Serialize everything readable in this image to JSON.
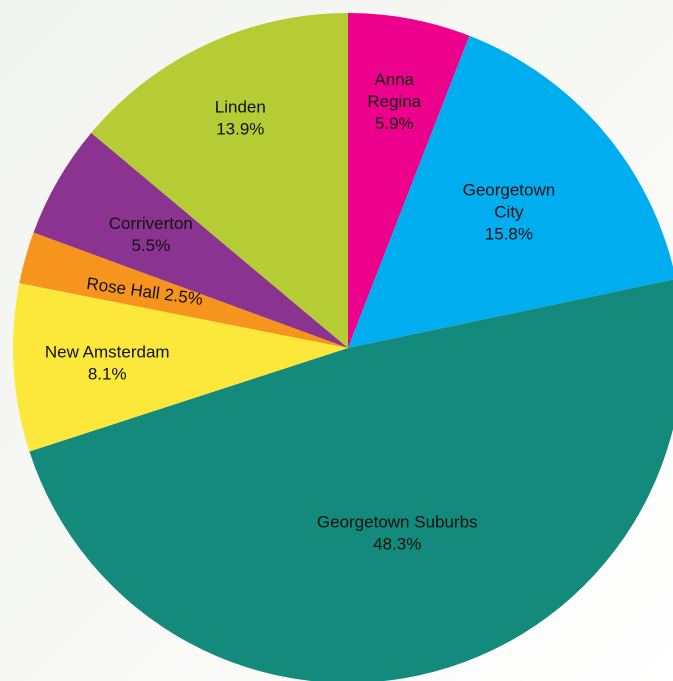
{
  "chart_data": {
    "type": "pie",
    "title": "",
    "start_angle_deg": 0,
    "direction": "clockwise",
    "slices": [
      {
        "label": "Anna Regina",
        "label_lines": [
          "Anna",
          "Regina",
          "5.9%"
        ],
        "value": 5.9,
        "color": "#EC008C"
      },
      {
        "label": "Georgetown City",
        "label_lines": [
          "Georgetown",
          "City",
          "15.8%"
        ],
        "value": 15.8,
        "color": "#00AEEF"
      },
      {
        "label": "Georgetown Suburbs",
        "label_lines": [
          "Georgetown Suburbs",
          "48.3%"
        ],
        "value": 48.3,
        "color": "#148A7C"
      },
      {
        "label": "New Amsterdam",
        "label_lines": [
          "New Amsterdam",
          "8.1%"
        ],
        "value": 8.1,
        "color": "#FBE83A"
      },
      {
        "label": "Rose Hall",
        "label_lines": [
          "Rose Hall 2.5%"
        ],
        "value": 2.5,
        "color": "#F7941D"
      },
      {
        "label": "Corriverton",
        "label_lines": [
          "Corriverton",
          "5.5%"
        ],
        "value": 5.5,
        "color": "#8B3390"
      },
      {
        "label": "Linden",
        "label_lines": [
          "Linden",
          "13.9%"
        ],
        "value": 13.9,
        "color": "#B5CC35"
      }
    ]
  }
}
